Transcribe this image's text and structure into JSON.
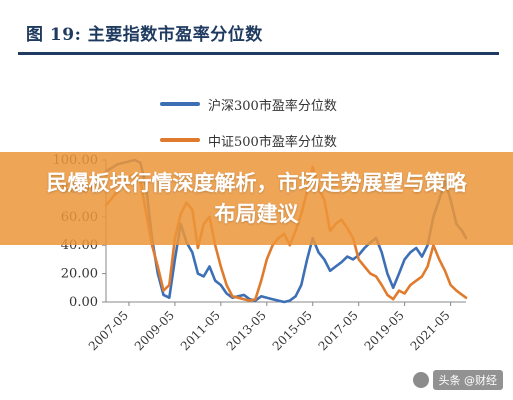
{
  "figure": {
    "title": "图  19:  主要指数市盈率分位数"
  },
  "banner": {
    "text": "民爆板块行情深度解析，市场走势展望与策略布局建议"
  },
  "watermark": {
    "text": "头条 @财经"
  },
  "colors": {
    "title": "#1f3a5f",
    "series1": "#3d6fb6",
    "series2": "#e07b2e",
    "banner": "#ec963a"
  },
  "chart_data": {
    "type": "line",
    "title": "",
    "xlabel": "",
    "ylabel": "",
    "ylim": [
      0,
      100
    ],
    "yticks": [
      "0.00",
      "20.00",
      "40.00",
      "60.00",
      "80.00",
      "100.00"
    ],
    "xticks": [
      "2007-05",
      "2009-05",
      "2011-05",
      "2013-05",
      "2015-05",
      "2017-05",
      "2019-05",
      "2021-05"
    ],
    "grid": false,
    "legend_position": "top-center",
    "series": [
      {
        "name": "沪深300市盈率分位数",
        "color": "#3d6fb6",
        "points": [
          [
            "2006-05",
            92
          ],
          [
            "2006-11",
            97
          ],
          [
            "2007-05",
            99
          ],
          [
            "2007-08",
            100
          ],
          [
            "2007-11",
            98
          ],
          [
            "2008-02",
            80
          ],
          [
            "2008-05",
            45
          ],
          [
            "2008-08",
            20
          ],
          [
            "2008-11",
            5
          ],
          [
            "2009-02",
            3
          ],
          [
            "2009-05",
            30
          ],
          [
            "2009-08",
            55
          ],
          [
            "2009-11",
            42
          ],
          [
            "2010-02",
            35
          ],
          [
            "2010-05",
            20
          ],
          [
            "2010-08",
            18
          ],
          [
            "2010-11",
            25
          ],
          [
            "2011-02",
            15
          ],
          [
            "2011-05",
            12
          ],
          [
            "2011-08",
            6
          ],
          [
            "2011-11",
            3
          ],
          [
            "2012-02",
            4
          ],
          [
            "2012-05",
            5
          ],
          [
            "2012-08",
            2
          ],
          [
            "2012-11",
            1
          ],
          [
            "2013-02",
            4
          ],
          [
            "2013-05",
            3
          ],
          [
            "2013-08",
            2
          ],
          [
            "2013-11",
            1
          ],
          [
            "2014-02",
            0
          ],
          [
            "2014-05",
            1
          ],
          [
            "2014-08",
            4
          ],
          [
            "2014-11",
            12
          ],
          [
            "2015-02",
            30
          ],
          [
            "2015-05",
            45
          ],
          [
            "2015-08",
            35
          ],
          [
            "2015-11",
            30
          ],
          [
            "2016-02",
            22
          ],
          [
            "2016-05",
            25
          ],
          [
            "2016-08",
            28
          ],
          [
            "2016-11",
            32
          ],
          [
            "2017-02",
            30
          ],
          [
            "2017-05",
            33
          ],
          [
            "2017-08",
            38
          ],
          [
            "2017-11",
            42
          ],
          [
            "2018-02",
            45
          ],
          [
            "2018-05",
            35
          ],
          [
            "2018-08",
            20
          ],
          [
            "2018-11",
            10
          ],
          [
            "2019-02",
            20
          ],
          [
            "2019-05",
            30
          ],
          [
            "2019-08",
            35
          ],
          [
            "2019-11",
            38
          ],
          [
            "2020-02",
            32
          ],
          [
            "2020-05",
            40
          ],
          [
            "2020-08",
            60
          ],
          [
            "2020-11",
            72
          ],
          [
            "2021-02",
            85
          ],
          [
            "2021-05",
            72
          ],
          [
            "2021-08",
            55
          ],
          [
            "2021-11",
            50
          ],
          [
            "2022-01",
            45
          ]
        ]
      },
      {
        "name": "中证500市盈率分位数",
        "color": "#e07b2e",
        "points": [
          [
            "2006-05",
            68
          ],
          [
            "2006-11",
            78
          ],
          [
            "2007-05",
            88
          ],
          [
            "2007-08",
            90
          ],
          [
            "2007-11",
            85
          ],
          [
            "2008-02",
            62
          ],
          [
            "2008-05",
            40
          ],
          [
            "2008-08",
            25
          ],
          [
            "2008-11",
            8
          ],
          [
            "2009-02",
            12
          ],
          [
            "2009-05",
            45
          ],
          [
            "2009-08",
            62
          ],
          [
            "2009-11",
            70
          ],
          [
            "2010-02",
            65
          ],
          [
            "2010-05",
            38
          ],
          [
            "2010-08",
            55
          ],
          [
            "2010-11",
            60
          ],
          [
            "2011-02",
            40
          ],
          [
            "2011-05",
            25
          ],
          [
            "2011-08",
            12
          ],
          [
            "2011-11",
            4
          ],
          [
            "2012-02",
            3
          ],
          [
            "2012-05",
            2
          ],
          [
            "2012-08",
            1
          ],
          [
            "2012-11",
            2
          ],
          [
            "2013-02",
            15
          ],
          [
            "2013-05",
            30
          ],
          [
            "2013-08",
            40
          ],
          [
            "2013-11",
            45
          ],
          [
            "2014-02",
            48
          ],
          [
            "2014-05",
            40
          ],
          [
            "2014-08",
            50
          ],
          [
            "2014-11",
            62
          ],
          [
            "2015-02",
            78
          ],
          [
            "2015-05",
            95
          ],
          [
            "2015-08",
            80
          ],
          [
            "2015-11",
            72
          ],
          [
            "2016-02",
            50
          ],
          [
            "2016-05",
            55
          ],
          [
            "2016-08",
            58
          ],
          [
            "2016-11",
            52
          ],
          [
            "2017-02",
            45
          ],
          [
            "2017-05",
            30
          ],
          [
            "2017-08",
            25
          ],
          [
            "2017-11",
            20
          ],
          [
            "2018-02",
            18
          ],
          [
            "2018-05",
            12
          ],
          [
            "2018-08",
            5
          ],
          [
            "2018-11",
            2
          ],
          [
            "2019-02",
            8
          ],
          [
            "2019-05",
            6
          ],
          [
            "2019-08",
            12
          ],
          [
            "2019-11",
            15
          ],
          [
            "2020-02",
            18
          ],
          [
            "2020-05",
            25
          ],
          [
            "2020-08",
            40
          ],
          [
            "2020-11",
            30
          ],
          [
            "2021-02",
            22
          ],
          [
            "2021-05",
            12
          ],
          [
            "2021-08",
            8
          ],
          [
            "2021-11",
            5
          ],
          [
            "2022-01",
            3
          ]
        ]
      }
    ]
  }
}
